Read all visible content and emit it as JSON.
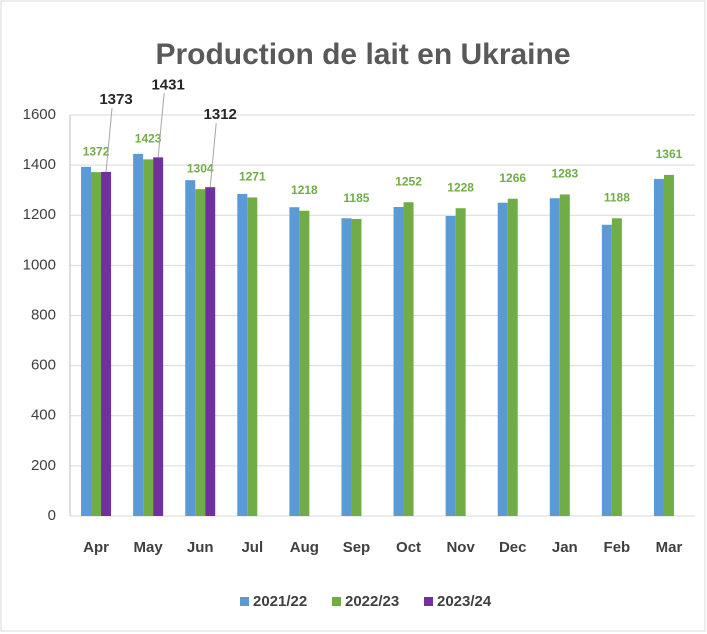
{
  "chart_data": {
    "type": "bar",
    "title": "Production de lait en Ukraine",
    "categories": [
      "Apr",
      "May",
      "Jun",
      "Jul",
      "Aug",
      "Sep",
      "Oct",
      "Nov",
      "Dec",
      "Jan",
      "Feb",
      "Mar"
    ],
    "series": [
      {
        "name": "2021/22",
        "color": "#5b9bd5",
        "labels": false,
        "values": [
          1393,
          1445,
          1340,
          1285,
          1232,
          1188,
          1233,
          1197,
          1250,
          1268,
          1162,
          1345
        ]
      },
      {
        "name": "2022/23",
        "color": "#70ad47",
        "labels": true,
        "values": [
          1372,
          1423,
          1304,
          1271,
          1218,
          1185,
          1252,
          1228,
          1266,
          1283,
          1188,
          1361
        ]
      },
      {
        "name": "2023/24",
        "color": "#7030a0",
        "labels": true,
        "values": [
          1373,
          1431,
          1312,
          null,
          null,
          null,
          null,
          null,
          null,
          null,
          null,
          null
        ]
      }
    ],
    "ylim": [
      0,
      1600
    ],
    "yticks": [
      0,
      200,
      400,
      600,
      800,
      1000,
      1200,
      1400,
      1600
    ],
    "grid": true
  }
}
